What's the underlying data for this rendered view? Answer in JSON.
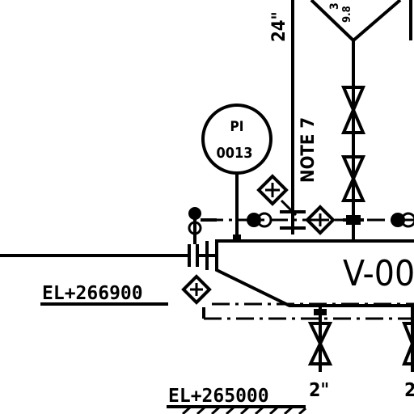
{
  "instrument": {
    "type_label": "PI",
    "tag_number": "0013"
  },
  "vessel": {
    "tag_partial": "V-00"
  },
  "pipe_sizes": {
    "vertical_line": "24\"",
    "drain_left": "2\"",
    "drain_right": "2"
  },
  "notes": {
    "note_ref": "NOTE 7"
  },
  "elevations": {
    "upper": "EL+266900",
    "lower": "EL+265000"
  },
  "cut_off_text": {
    "top_funnel_left": "3",
    "top_funnel_right": "9.8"
  }
}
